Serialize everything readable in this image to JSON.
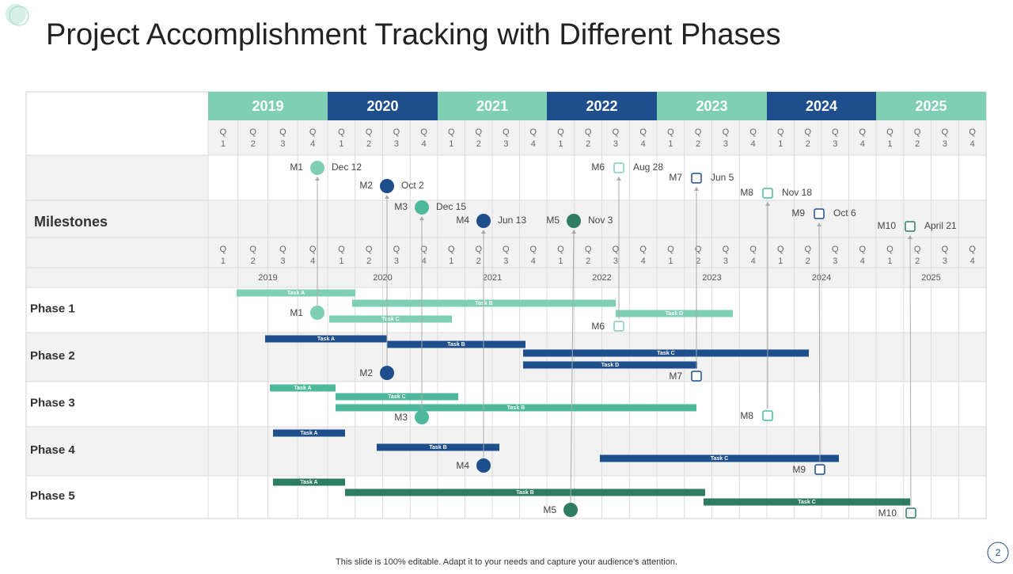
{
  "title": "Project Accomplishment Tracking with Different Phases",
  "years": [
    "2019",
    "2020",
    "2021",
    "2022",
    "2023",
    "2024",
    "2025"
  ],
  "quarter_prefix": "Q",
  "quarter_numbers": [
    "1",
    "2",
    "3",
    "4"
  ],
  "milestones_label": "Milestones",
  "milestones": [
    {
      "label": "M1",
      "date": "Dec 12"
    },
    {
      "label": "M2",
      "date": "Oct 2"
    },
    {
      "label": "M3",
      "date": "Dec 15"
    },
    {
      "label": "M4",
      "date": "Jun 13"
    },
    {
      "label": "M5",
      "date": "Nov 3"
    },
    {
      "label": "M6",
      "date": "Aug 28"
    },
    {
      "label": "M7",
      "date": "Jun 5"
    },
    {
      "label": "M8",
      "date": "Nov 18"
    },
    {
      "label": "M9",
      "date": "Oct 6"
    },
    {
      "label": "M10",
      "date": "April 21"
    }
  ],
  "phases": [
    {
      "name": "Phase 1",
      "tasks": [
        "Task A",
        "Task B",
        "Task C",
        "Task D"
      ]
    },
    {
      "name": "Phase 2",
      "tasks": [
        "Task A",
        "Task B",
        "Task C",
        "Task D"
      ]
    },
    {
      "name": "Phase 3",
      "tasks": [
        "Task A",
        "Task C",
        "Task B"
      ]
    },
    {
      "name": "Phase 4",
      "tasks": [
        "Task A",
        "Task B",
        "Task C"
      ]
    },
    {
      "name": "Phase 5",
      "tasks": [
        "Task A",
        "Task B",
        "Task C"
      ]
    }
  ],
  "footer": "This slide is 100% editable. Adapt it to your needs and capture your audience's attention.",
  "page_number": "2"
}
